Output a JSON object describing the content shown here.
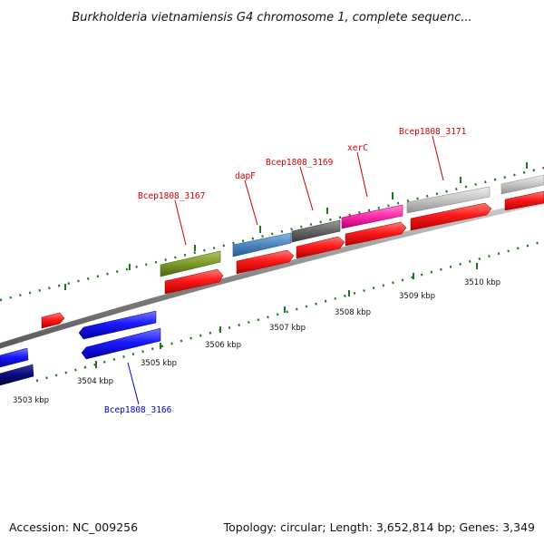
{
  "title": "Burkholderia vietnamiensis G4 chromosome 1, complete sequenc...",
  "footer": {
    "accession": "Accession: NC_009256",
    "topology": "Topology: circular; Length: 3,652,814 bp; Genes: 3,349"
  },
  "colors": {
    "gene_forward": "#ff1a1a",
    "gene_reverse": "#1a1aff",
    "label_red": "#cc0000",
    "label_blue": "#0000cc",
    "tick_green": "#1a7a1a",
    "backbone": "#8a8a8a"
  },
  "kbp_ticks": [
    {
      "id": "t3503",
      "label": "3503 kbp"
    },
    {
      "id": "t3504",
      "label": "3504 kbp"
    },
    {
      "id": "t3505",
      "label": "3505 kbp"
    },
    {
      "id": "t3506",
      "label": "3506 kbp"
    },
    {
      "id": "t3507",
      "label": "3507 kbp"
    },
    {
      "id": "t3508",
      "label": "3508 kbp"
    },
    {
      "id": "t3509",
      "label": "3509 kbp"
    },
    {
      "id": "t3510",
      "label": "3510 kbp"
    }
  ],
  "gene_labels": [
    {
      "id": "bcep1808-3167",
      "text": "Bcep1808_3167",
      "strand": "forward"
    },
    {
      "id": "dapf",
      "text": "dapF",
      "strand": "forward"
    },
    {
      "id": "bcep1808-3169",
      "text": "Bcep1808_3169",
      "strand": "forward"
    },
    {
      "id": "xerc",
      "text": "xerC",
      "strand": "forward"
    },
    {
      "id": "bcep1808-3171",
      "text": "Bcep1808_3171",
      "strand": "forward"
    },
    {
      "id": "bcep1808-3166",
      "text": "Bcep1808_3166",
      "strand": "reverse"
    }
  ],
  "feature_colors": {
    "olive": "#7a9a2a",
    "steelblue": "#4a86c0",
    "darkgray": "#666666",
    "magenta": "#ff2aa8",
    "lightgray": "#c4c4c4",
    "navy": "#0a0a7a"
  }
}
